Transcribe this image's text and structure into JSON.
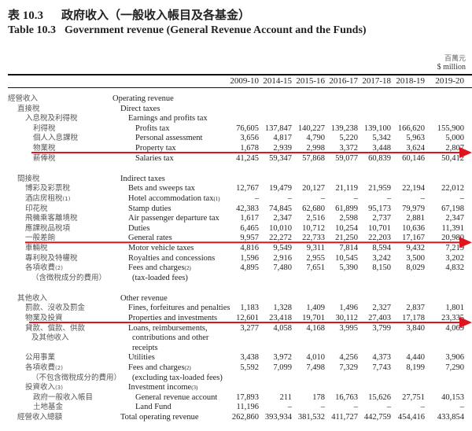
{
  "title": {
    "zh_number": "表 10.3",
    "zh_title": "政府收入（一般收入帳目及各基金）",
    "en_number": "Table 10.3",
    "en_title": "Government revenue (General Revenue Account and the Funds)"
  },
  "unit": {
    "zh": "百萬元",
    "en": "$ million"
  },
  "years": [
    "2009-10",
    "2014-15",
    "2015-16",
    "2016-17",
    "2017-18",
    "2018-19",
    "2019-20"
  ],
  "annotation_color": "#e0141e",
  "rows": [
    {
      "zh": "經營收入",
      "en": "Operating revenue",
      "level": 0,
      "values": []
    },
    {
      "zh": "直接稅",
      "en": "Direct taxes",
      "level": 1,
      "values": []
    },
    {
      "zh": "入息稅及利得稅",
      "en": "Earnings and profits tax",
      "level": 2,
      "values": []
    },
    {
      "zh": "利得稅",
      "en": "Profits tax",
      "level": 3,
      "values": [
        "76,605",
        "137,847",
        "140,227",
        "139,238",
        "139,100",
        "166,620",
        "155,900"
      ]
    },
    {
      "zh": "個人入息課稅",
      "en": "Personal assessment",
      "level": 3,
      "values": [
        "3,656",
        "4,817",
        "4,790",
        "5,220",
        "5,342",
        "5,963",
        "5,000"
      ]
    },
    {
      "zh": "物業稅",
      "en": "Property tax",
      "level": 3,
      "values": [
        "1,678",
        "2,939",
        "2,998",
        "3,372",
        "3,448",
        "3,624",
        "2,807"
      ],
      "highlighted": true
    },
    {
      "zh": "薪俸稅",
      "en": "Salaries tax",
      "level": 3,
      "values": [
        "41,245",
        "59,347",
        "57,868",
        "59,077",
        "60,839",
        "60,146",
        "50,412"
      ]
    },
    {
      "zh": "間接稅",
      "en": "Indirect taxes",
      "level": 1,
      "values": []
    },
    {
      "zh": "博彩及彩票稅",
      "en": "Bets and sweeps tax",
      "level": 2,
      "values": [
        "12,767",
        "19,479",
        "20,127",
        "21,119",
        "21,959",
        "22,194",
        "22,012"
      ]
    },
    {
      "zh": "酒店房租稅",
      "zh_note": "(1)",
      "en": "Hotel accommodation tax",
      "en_note": "(1)",
      "level": 2,
      "values": [
        "–",
        "–",
        "–",
        "–",
        "–",
        "–",
        "–"
      ]
    },
    {
      "zh": "印花稅",
      "en": "Stamp duties",
      "level": 2,
      "values": [
        "42,383",
        "74,845",
        "62,680",
        "61,899",
        "95,173",
        "79,979",
        "67,198"
      ]
    },
    {
      "zh": "飛機乘客離境稅",
      "en": "Air passenger departure tax",
      "level": 2,
      "values": [
        "1,617",
        "2,347",
        "2,516",
        "2,598",
        "2,737",
        "2,881",
        "2,347"
      ]
    },
    {
      "zh": "應課稅品稅項",
      "en": "Duties",
      "level": 2,
      "values": [
        "6,465",
        "10,010",
        "10,712",
        "10,254",
        "10,701",
        "10,636",
        "11,391"
      ]
    },
    {
      "zh": "一般差餉",
      "en": "General rates",
      "level": 2,
      "values": [
        "9,957",
        "22,272",
        "22,733",
        "21,250",
        "22,203",
        "17,167",
        "20,980"
      ],
      "highlighted": true
    },
    {
      "zh": "車輛稅",
      "en": "Motor vehicle taxes",
      "level": 2,
      "values": [
        "4,816",
        "9,549",
        "9,311",
        "7,814",
        "8,594",
        "9,432",
        "7,219"
      ]
    },
    {
      "zh": "專利稅及特權稅",
      "en": "Royalties and concessions",
      "level": 2,
      "values": [
        "1,596",
        "2,916",
        "2,955",
        "10,545",
        "3,242",
        "3,500",
        "3,202"
      ]
    },
    {
      "zh": "各項收費",
      "zh_note": "(2)",
      "en": "Fees and charges",
      "en_note": "(2)",
      "level": 2,
      "values": [
        "4,895",
        "7,480",
        "7,651",
        "5,390",
        "8,150",
        "8,029",
        "4,832"
      ]
    },
    {
      "zh": "（含徵稅成分的費用）",
      "en": "(tax-loaded fees)",
      "level": 2.5,
      "values": []
    },
    {
      "zh": "其他收入",
      "en": "Other revenue",
      "level": 1,
      "values": []
    },
    {
      "zh": "罰款、沒收及罰金",
      "en": "Fines, forfeitures and penalties",
      "level": 2,
      "values": [
        "1,183",
        "1,328",
        "1,409",
        "1,496",
        "2,327",
        "2,837",
        "1,801"
      ]
    },
    {
      "zh": "物業及投資",
      "en": "Properties and investments",
      "level": 2,
      "values": [
        "12,601",
        "23,418",
        "19,701",
        "30,112",
        "27,403",
        "17,178",
        "23,335"
      ],
      "highlighted": true
    },
    {
      "zh": "貸款、償款、供款",
      "en": "Loans, reimbursements,",
      "level": 2,
      "values": [
        "3,277",
        "4,058",
        "4,168",
        "3,995",
        "3,799",
        "3,840",
        "4,069"
      ]
    },
    {
      "zh": "及其他收入",
      "en": "contributions and other",
      "level": 2.5,
      "values": []
    },
    {
      "zh": "",
      "en": "receipts",
      "level": 2.5,
      "values": []
    },
    {
      "zh": "公用事業",
      "en": "Utilities",
      "level": 2,
      "values": [
        "3,438",
        "3,972",
        "4,010",
        "4,256",
        "4,373",
        "4,440",
        "3,906"
      ]
    },
    {
      "zh": "各項收費",
      "zh_note": "(2)",
      "en": "Fees and charges",
      "en_note": "(2)",
      "level": 2,
      "values": [
        "5,592",
        "7,099",
        "7,498",
        "7,329",
        "7,743",
        "8,199",
        "7,290"
      ]
    },
    {
      "zh": "（不包含徵稅成分的費用）",
      "en": "(excluding tax-loaded fees)",
      "level": 2.5,
      "values": []
    },
    {
      "zh": "投資收入",
      "zh_note": "(3)",
      "en": "Investment income",
      "en_note": "(3)",
      "level": 2,
      "values": []
    },
    {
      "zh": "政府一般收入帳目",
      "en": "General revenue account",
      "level": 3,
      "values": [
        "17,893",
        "211",
        "178",
        "16,763",
        "15,626",
        "27,751",
        "40,153"
      ]
    },
    {
      "zh": "土地基金",
      "en": "Land Fund",
      "level": 3,
      "values": [
        "11,196",
        "–",
        "–",
        "–",
        "–",
        "–",
        "–"
      ]
    },
    {
      "zh": "經營收入總額",
      "en": "Total operating revenue",
      "level": 1,
      "values": [
        "262,860",
        "393,934",
        "381,532",
        "411,727",
        "442,759",
        "454,416",
        "433,854"
      ]
    }
  ]
}
